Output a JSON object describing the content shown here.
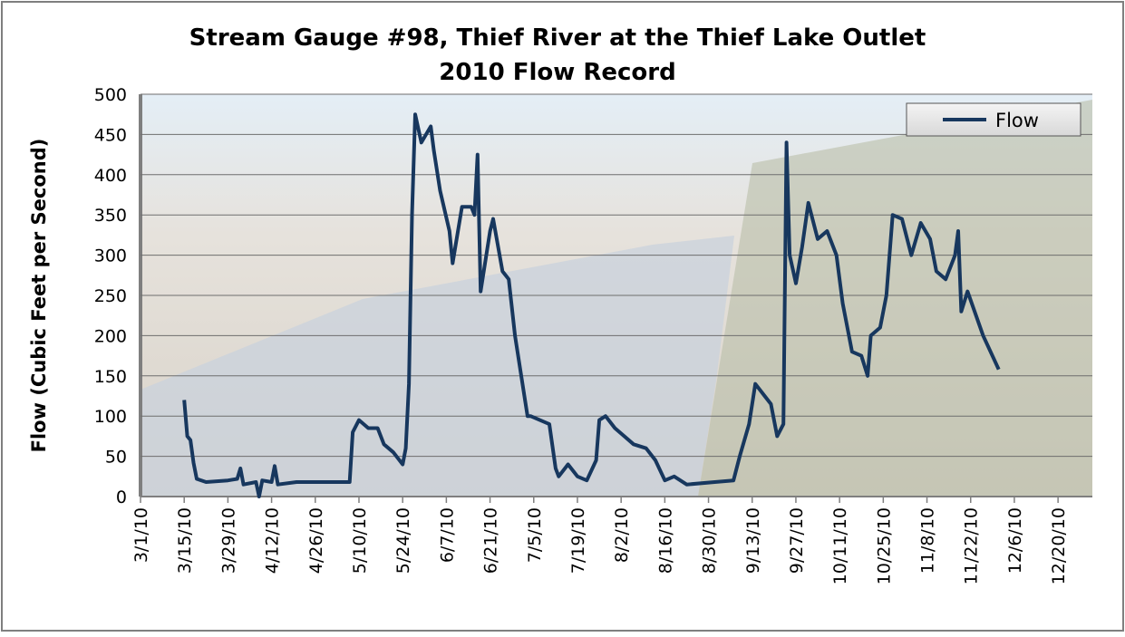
{
  "chart_data": {
    "type": "line",
    "title": "Stream Gauge #98, Thief River at the Thief Lake Outlet",
    "subtitle": "2010 Flow Record",
    "y_label": "Flow (Cubic Feet per Second)",
    "x": [
      "3/15/10",
      "3/16/10",
      "3/17/10",
      "3/18/10",
      "3/19/10",
      "3/22/10",
      "3/29/10",
      "4/1/10",
      "4/2/10",
      "4/3/10",
      "4/7/10",
      "4/8/10",
      "4/9/10",
      "4/12/10",
      "4/13/10",
      "4/14/10",
      "4/20/10",
      "5/1/10",
      "5/7/10",
      "5/8/10",
      "5/10/10",
      "5/13/10",
      "5/16/10",
      "5/18/10",
      "5/21/10",
      "5/24/10",
      "5/25/10",
      "5/26/10",
      "5/27/10",
      "5/28/10",
      "5/30/10",
      "6/2/10",
      "6/3/10",
      "6/5/10",
      "6/8/10",
      "6/9/10",
      "6/12/10",
      "6/15/10",
      "6/16/10",
      "6/17/10",
      "6/18/10",
      "6/21/10",
      "6/22/10",
      "6/25/10",
      "6/27/10",
      "6/29/10",
      "7/1/10",
      "7/3/10",
      "7/4/10",
      "7/10/10",
      "7/12/10",
      "7/13/10",
      "7/16/10",
      "7/19/10",
      "7/22/10",
      "7/25/10",
      "7/26/10",
      "7/28/10",
      "7/31/10",
      "8/3/10",
      "8/6/10",
      "8/10/10",
      "8/13/10",
      "8/16/10",
      "8/19/10",
      "8/23/10",
      "9/1/10",
      "9/7/10",
      "9/9/10",
      "9/12/10",
      "9/14/10",
      "9/17/10",
      "9/19/10",
      "9/21/10",
      "9/23/10",
      "9/24/10",
      "9/25/10",
      "9/27/10",
      "9/29/10",
      "10/1/10",
      "10/4/10",
      "10/7/10",
      "10/10/10",
      "10/12/10",
      "10/15/10",
      "10/18/10",
      "10/20/10",
      "10/21/10",
      "10/24/10",
      "10/26/10",
      "10/28/10",
      "10/31/10",
      "11/3/10",
      "11/6/10",
      "11/9/10",
      "11/11/10",
      "11/14/10",
      "11/17/10",
      "11/18/10",
      "11/19/10",
      "11/21/10",
      "11/26/10",
      "12/1/10"
    ],
    "series": [
      {
        "name": "Flow",
        "color": "#17375e",
        "values": [
          120,
          75,
          70,
          42,
          22,
          18,
          20,
          22,
          35,
          15,
          18,
          0,
          20,
          18,
          38,
          15,
          18,
          18,
          18,
          80,
          95,
          85,
          85,
          65,
          55,
          40,
          60,
          140,
          350,
          475,
          440,
          460,
          430,
          380,
          330,
          290,
          360,
          360,
          350,
          425,
          255,
          330,
          345,
          280,
          270,
          200,
          150,
          100,
          100,
          90,
          35,
          25,
          40,
          25,
          20,
          45,
          95,
          100,
          85,
          75,
          65,
          60,
          45,
          20,
          25,
          15,
          18,
          20,
          50,
          90,
          140,
          125,
          115,
          75,
          90,
          440,
          300,
          265,
          310,
          365,
          320,
          330,
          300,
          240,
          180,
          175,
          150,
          200,
          210,
          250,
          350,
          345,
          300,
          340,
          320,
          280,
          270,
          300,
          330,
          230,
          255,
          200,
          158
        ]
      }
    ],
    "xlim": [
      "3/1/10",
      "12/31/10"
    ],
    "xticks": [
      "3/1/10",
      "3/15/10",
      "3/29/10",
      "4/12/10",
      "4/26/10",
      "5/10/10",
      "5/24/10",
      "6/7/10",
      "6/21/10",
      "7/5/10",
      "7/19/10",
      "8/2/10",
      "8/16/10",
      "8/30/10",
      "9/13/10",
      "9/27/10",
      "10/11/10",
      "10/25/10",
      "11/8/10",
      "11/22/10",
      "12/6/10",
      "12/20/10"
    ],
    "ylim": [
      0,
      500
    ],
    "yticks": [
      0,
      50,
      100,
      150,
      200,
      250,
      300,
      350,
      400,
      450,
      500
    ],
    "grid": true,
    "legend": "top-right"
  }
}
